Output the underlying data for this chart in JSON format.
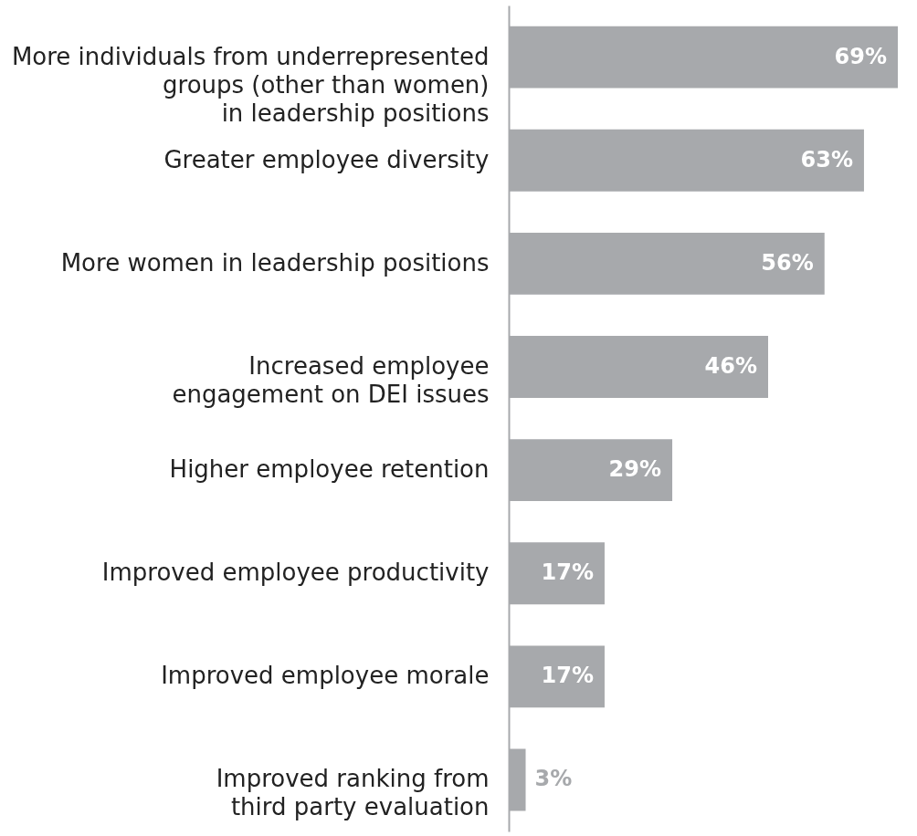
{
  "chart_data": {
    "type": "bar",
    "orientation": "horizontal",
    "categories": [
      "More individuals from underrepresented\ngroups (other than women)\nin leadership positions",
      "Greater employee diversity",
      "More women in leadership positions",
      "Increased employee\nengagement on DEI issues",
      "Higher employee retention",
      "Improved employee productivity",
      "Improved employee morale",
      "Improved ranking from\nthird party evaluation"
    ],
    "values": [
      69,
      63,
      56,
      46,
      29,
      17,
      17,
      3
    ],
    "value_labels": [
      "69%",
      "63%",
      "56%",
      "46%",
      "29%",
      "17%",
      "17%",
      "3%"
    ],
    "color": "#a7a9ac",
    "xlim": [
      0,
      69
    ]
  }
}
